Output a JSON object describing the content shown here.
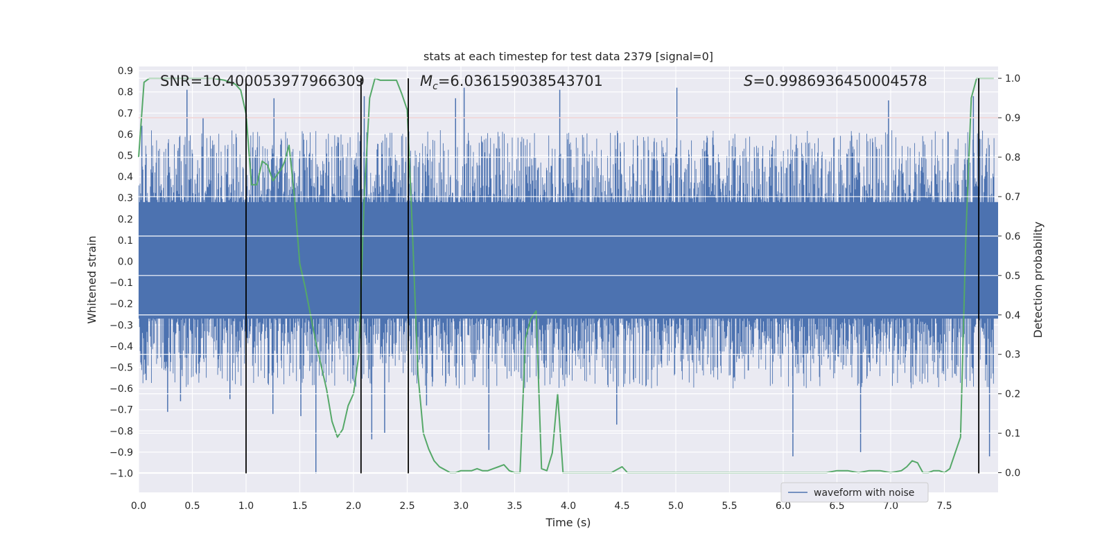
{
  "chart_data": {
    "type": "line",
    "title": "stats at each timestep for test data 2379 [signal=0]",
    "xlabel": "Time (s)",
    "ylabel": "Whitened strain",
    "ylabel_right": "Detection probability",
    "xlim": [
      0.0,
      8.0
    ],
    "ylim": [
      -1.09,
      0.92
    ],
    "ylim_right": [
      -0.05,
      1.03
    ],
    "x_ticks": [
      "0.0",
      "0.5",
      "1.0",
      "1.5",
      "2.0",
      "2.5",
      "3.0",
      "3.5",
      "4.0",
      "4.5",
      "5.0",
      "5.5",
      "6.0",
      "6.5",
      "7.0",
      "7.5"
    ],
    "y_ticks": [
      "0.9",
      "0.8",
      "0.7",
      "0.6",
      "0.5",
      "0.4",
      "0.3",
      "0.2",
      "0.1",
      "0.0",
      "−0.1",
      "−0.2",
      "−0.3",
      "−0.4",
      "−0.5",
      "−0.6",
      "−0.7",
      "−0.8",
      "−0.9",
      "−1.0"
    ],
    "y_right_ticks": [
      "1.0",
      "0.9",
      "0.8",
      "0.7",
      "0.6",
      "0.5",
      "0.4",
      "0.3",
      "0.2",
      "0.1",
      "0.0"
    ],
    "annotations": {
      "snr": "SNR=10.400053977966309",
      "mc_symbol": "M",
      "mc_sub": "c",
      "mc_value": "=6.036159038543701",
      "s_symbol": "S",
      "s_value": "=0.9986936450004578"
    },
    "threshold": 0.9,
    "vertical_lines": [
      1.0,
      2.07,
      2.51,
      7.82
    ],
    "legend": "waveform with noise",
    "waveform": {
      "name": "waveform with noise",
      "color": "#4c72b0",
      "dense_band": [
        -0.27,
        0.28
      ],
      "typical_extent": [
        -0.45,
        0.47
      ],
      "spikes": [
        {
          "x": 0.03,
          "y": 0.64
        },
        {
          "x": 0.07,
          "y": -0.56
        },
        {
          "x": 0.27,
          "y": -0.71
        },
        {
          "x": 0.39,
          "y": -0.66
        },
        {
          "x": 0.45,
          "y": 0.81
        },
        {
          "x": 0.6,
          "y": 0.68
        },
        {
          "x": 0.85,
          "y": -0.65
        },
        {
          "x": 1.25,
          "y": -0.72
        },
        {
          "x": 1.26,
          "y": 0.77
        },
        {
          "x": 1.51,
          "y": -0.73
        },
        {
          "x": 1.65,
          "y": -1.0
        },
        {
          "x": 2.1,
          "y": 0.78
        },
        {
          "x": 2.17,
          "y": -0.84
        },
        {
          "x": 2.29,
          "y": -0.81
        },
        {
          "x": 2.68,
          "y": -0.68
        },
        {
          "x": 2.95,
          "y": 0.77
        },
        {
          "x": 3.03,
          "y": 0.82
        },
        {
          "x": 3.26,
          "y": -0.89
        },
        {
          "x": 3.92,
          "y": 0.81
        },
        {
          "x": 4.45,
          "y": -0.77
        },
        {
          "x": 5.01,
          "y": 0.82
        },
        {
          "x": 6.09,
          "y": -0.92
        },
        {
          "x": 6.72,
          "y": -0.9
        },
        {
          "x": 6.98,
          "y": 0.76
        },
        {
          "x": 7.77,
          "y": 0.78
        },
        {
          "x": 7.92,
          "y": -0.92
        }
      ]
    },
    "probability": {
      "name": "detection probability",
      "color": "#55a868",
      "x": [
        0.0,
        0.05,
        0.1,
        0.2,
        0.3,
        0.4,
        0.5,
        0.6,
        0.7,
        0.8,
        0.9,
        0.95,
        1.0,
        1.05,
        1.1,
        1.15,
        1.2,
        1.25,
        1.3,
        1.33,
        1.36,
        1.4,
        1.45,
        1.5,
        1.55,
        1.6,
        1.65,
        1.7,
        1.75,
        1.8,
        1.85,
        1.9,
        1.95,
        2.0,
        2.05,
        2.1,
        2.15,
        2.2,
        2.25,
        2.3,
        2.35,
        2.4,
        2.45,
        2.5,
        2.55,
        2.6,
        2.65,
        2.7,
        2.75,
        2.8,
        2.9,
        2.95,
        3.0,
        3.05,
        3.1,
        3.15,
        3.2,
        3.25,
        3.3,
        3.35,
        3.4,
        3.45,
        3.5,
        3.55,
        3.6,
        3.65,
        3.7,
        3.75,
        3.8,
        3.85,
        3.9,
        3.95,
        4.0,
        4.05,
        4.1,
        4.2,
        4.3,
        4.4,
        4.5,
        4.55,
        4.6,
        4.7,
        4.8,
        4.9,
        5.0,
        5.2,
        5.4,
        5.5,
        5.6,
        5.8,
        6.0,
        6.2,
        6.4,
        6.5,
        6.6,
        6.7,
        6.8,
        6.9,
        7.0,
        7.1,
        7.15,
        7.2,
        7.25,
        7.3,
        7.35,
        7.4,
        7.45,
        7.5,
        7.55,
        7.6,
        7.65,
        7.7,
        7.75,
        7.8,
        7.83,
        7.87,
        7.92,
        7.96
      ],
      "y": [
        0.8,
        0.99,
        1.0,
        1.0,
        1.0,
        1.0,
        1.0,
        1.0,
        1.0,
        0.995,
        0.985,
        0.97,
        0.91,
        0.73,
        0.73,
        0.79,
        0.78,
        0.74,
        0.76,
        0.77,
        0.79,
        0.83,
        0.7,
        0.53,
        0.47,
        0.4,
        0.33,
        0.27,
        0.21,
        0.13,
        0.09,
        0.11,
        0.17,
        0.2,
        0.3,
        0.7,
        0.95,
        1.0,
        0.995,
        0.995,
        0.995,
        0.995,
        0.96,
        0.92,
        0.6,
        0.25,
        0.1,
        0.06,
        0.03,
        0.015,
        0.0,
        0.0,
        0.005,
        0.005,
        0.005,
        0.01,
        0.005,
        0.005,
        0.01,
        0.015,
        0.02,
        0.005,
        0.0,
        0.0,
        0.34,
        0.39,
        0.41,
        0.01,
        0.005,
        0.05,
        0.2,
        0.0,
        0.0,
        0.0,
        0.0,
        0.0,
        0.0,
        0.0,
        0.015,
        0.0,
        0.0,
        0.0,
        0.0,
        0.0,
        0.0,
        0.0,
        0.0,
        0.0,
        0.0,
        0.0,
        0.0,
        0.0,
        0.0,
        0.005,
        0.005,
        0.0,
        0.005,
        0.005,
        0.0,
        0.005,
        0.015,
        0.03,
        0.025,
        0.0,
        0.0,
        0.005,
        0.005,
        0.0,
        0.01,
        0.05,
        0.09,
        0.6,
        0.95,
        1.0,
        1.0,
        1.0,
        1.0,
        1.0
      ]
    }
  }
}
